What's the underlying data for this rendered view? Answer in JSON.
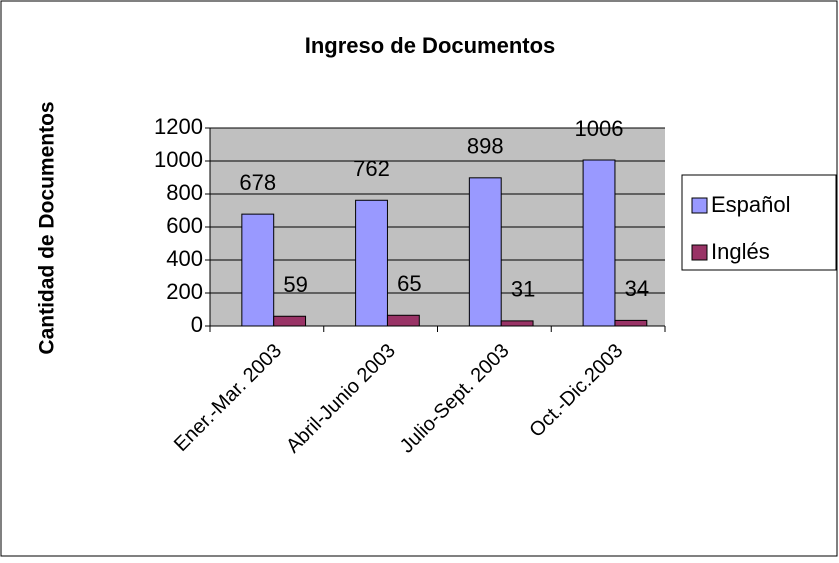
{
  "chart_data": {
    "type": "bar",
    "title": "Ingreso de Documentos",
    "y_label": "Cantidad de Documentos",
    "categories": [
      "Ener.-Mar. 2003",
      "Abril-Junio 2003",
      "Julio-Sept. 2003",
      "Oct.-Dic.2003"
    ],
    "series": [
      {
        "name": "Español",
        "color": "#9999ff",
        "values": [
          678,
          762,
          898,
          1006
        ]
      },
      {
        "name": "Inglés",
        "color": "#993366",
        "values": [
          59,
          65,
          31,
          34
        ]
      }
    ],
    "ylim": [
      0,
      1200
    ],
    "yticks": [
      0,
      200,
      400,
      600,
      800,
      1000,
      1200
    ],
    "grid": true,
    "legend": "right"
  }
}
